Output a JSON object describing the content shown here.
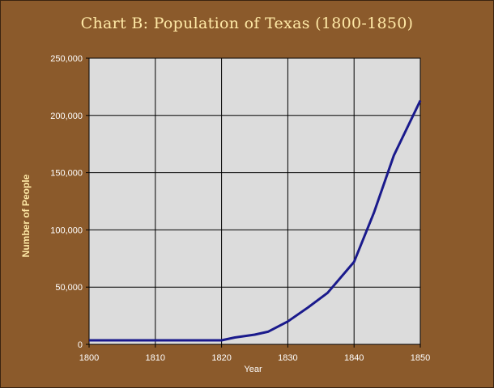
{
  "chart_data": {
    "type": "line",
    "title": "Chart B: Population of Texas (1800-1850)",
    "xlabel": "Year",
    "ylabel": "Number of People",
    "xlim": [
      1800,
      1850
    ],
    "ylim": [
      0,
      250000
    ],
    "x_ticks": [
      "1800",
      "1810",
      "1820",
      "1830",
      "1840",
      "1850"
    ],
    "y_ticks": [
      "0",
      "50,000",
      "100,000",
      "150,000",
      "200,000",
      "250,000"
    ],
    "grid": true,
    "colors": {
      "background": "#8b5a2b",
      "plot_area": "#dcdcdc",
      "line": "#1a1a8c",
      "title": "#ffe9a6"
    },
    "series": [
      {
        "x": [
          1800,
          1810,
          1820,
          1822,
          1825,
          1827,
          1830,
          1833,
          1836,
          1840,
          1843,
          1846,
          1850
        ],
        "y": [
          3500,
          3500,
          3500,
          6000,
          8500,
          11000,
          20000,
          32000,
          45000,
          72000,
          115000,
          165000,
          213000
        ]
      }
    ]
  }
}
